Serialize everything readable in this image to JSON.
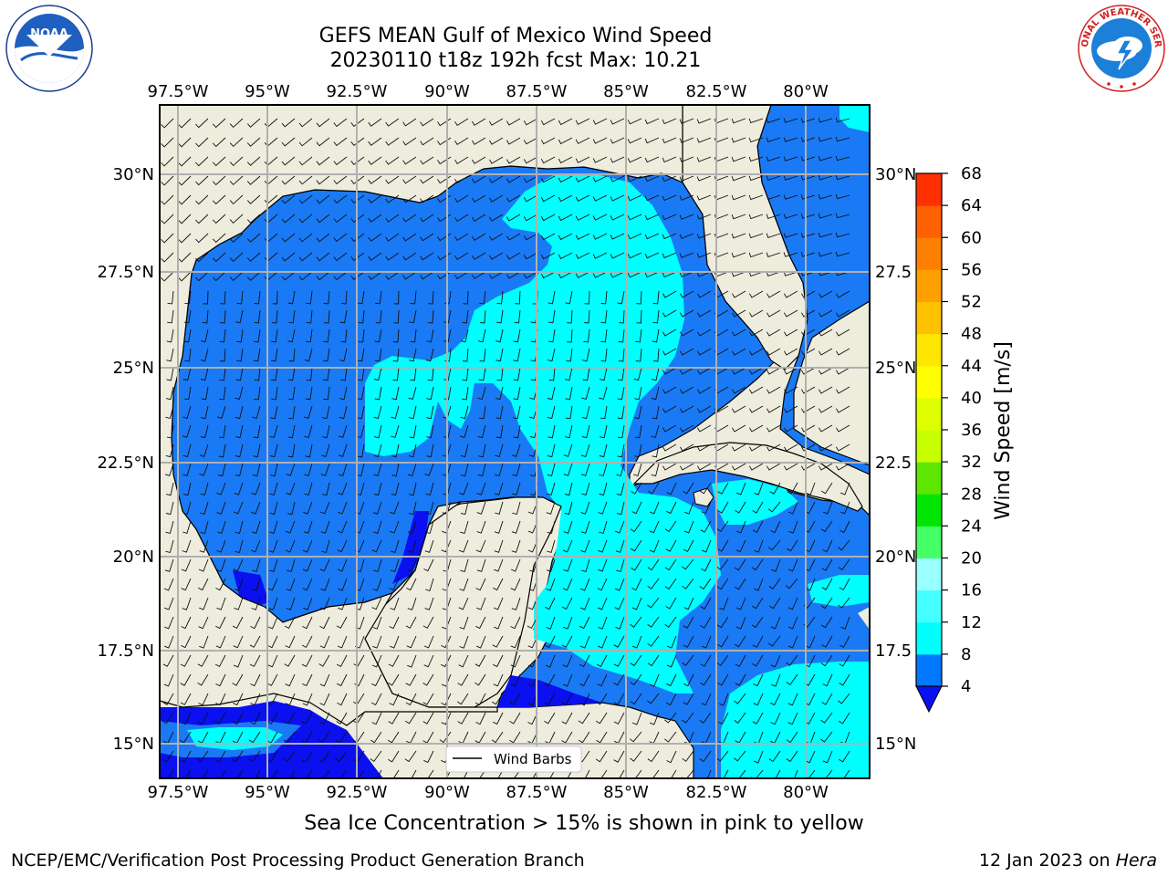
{
  "title": {
    "line1": "GEFS MEAN Gulf of Mexico Wind Speed",
    "line2": "20230110 t18z 192h fcst   Max: 10.21"
  },
  "logos": {
    "left": {
      "icon": "noaa-logo-icon",
      "text": "NOAA",
      "ring_text": "NATIONAL OCEANIC AND ATMOSPHERIC ADMINISTRATION · U.S. DEPARTMENT OF COMMERCE"
    },
    "right": {
      "icon": "nws-logo-icon",
      "ring_text": "NATIONAL WEATHER SERVICE"
    }
  },
  "map": {
    "lon_ticks": [
      "97.5°W",
      "95°W",
      "92.5°W",
      "90°W",
      "87.5°W",
      "85°W",
      "82.5°W",
      "80°W"
    ],
    "lat_ticks_left": [
      "30°N",
      "27.5°N",
      "25°N",
      "22.5°N",
      "20°N",
      "17.5°N",
      "15°N"
    ],
    "lat_ticks_right": [
      "30°N",
      "27.5",
      "25°N",
      "22.5",
      "20°N",
      "17.5",
      "15°N"
    ],
    "legend_label": "Wind Barbs",
    "colors": {
      "land": "#eeeddd",
      "ocean_4_8": "#1a7af5",
      "ocean_8_12": "#00ffff",
      "ocean_0_4": "#0a10f0",
      "grid": "#b0b0b0"
    }
  },
  "colorbar": {
    "label": "Wind Speed [m/s]",
    "ticks": [
      "4",
      "8",
      "12",
      "16",
      "20",
      "24",
      "28",
      "32",
      "36",
      "40",
      "44",
      "48",
      "52",
      "56",
      "60",
      "64",
      "68"
    ],
    "colors": [
      "#0078ff",
      "#00ffff",
      "#44ffff",
      "#9affff",
      "#44ff66",
      "#00e600",
      "#5ee600",
      "#c8ff00",
      "#dfff00",
      "#ffff00",
      "#ffe600",
      "#ffc000",
      "#ffa000",
      "#ff8000",
      "#ff6000",
      "#ff3000",
      "#ff0000"
    ],
    "extend_min_color": "#0a10f0"
  },
  "caption": "Sea Ice Concentration > 15% is shown in pink to yellow",
  "footer": {
    "left": "NCEP/EMC/Verification Post Processing Product Generation Branch",
    "right_prefix": "12 Jan 2023 on ",
    "right_machine": "Hera"
  }
}
